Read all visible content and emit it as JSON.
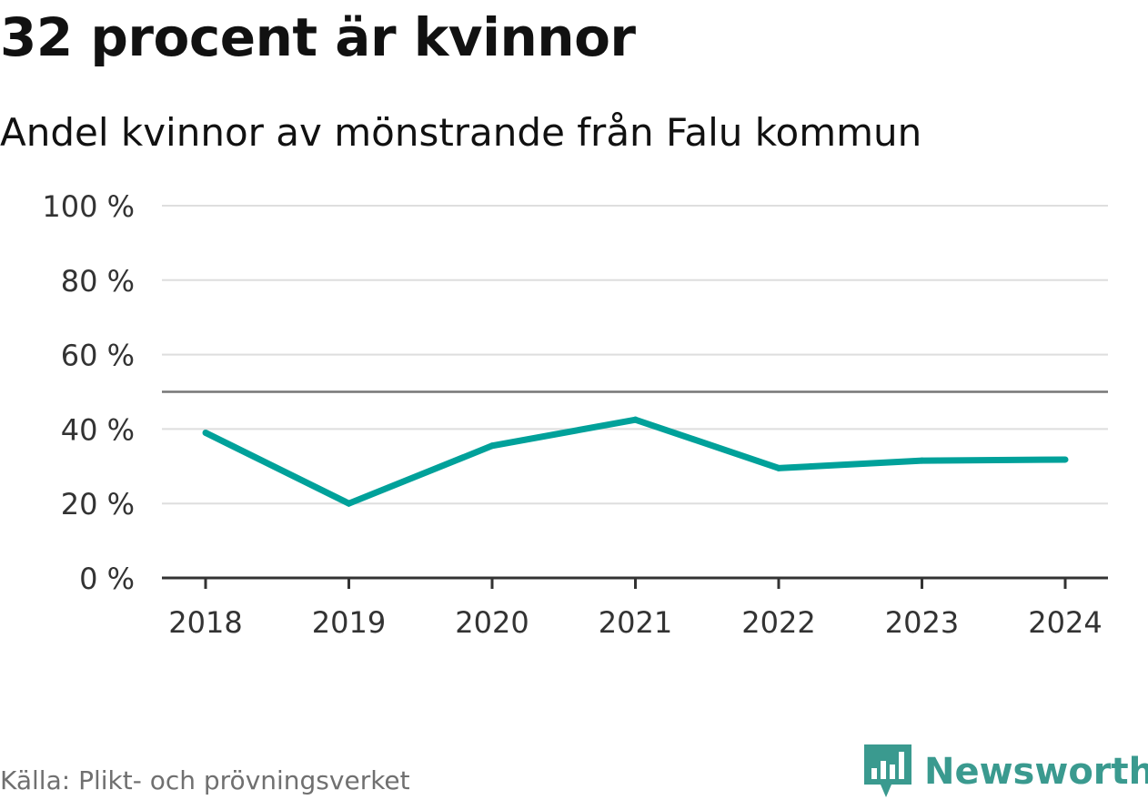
{
  "chart_data": {
    "type": "line",
    "title": "32 procent är kvinnor",
    "subtitle": "Andel kvinnor av mönstrande från Falu kommun",
    "categories": [
      "2018",
      "2019",
      "2020",
      "2021",
      "2022",
      "2023",
      "2024"
    ],
    "series": [
      {
        "name": "Andel kvinnor",
        "values": [
          39,
          20,
          35.5,
          42.5,
          29.5,
          31.5,
          31.8
        ],
        "color": "#00a19a"
      }
    ],
    "ylim": [
      0,
      100
    ],
    "yticks": [
      0,
      20,
      40,
      60,
      80,
      100
    ],
    "ytick_labels": [
      "0 %",
      "20 %",
      "40 %",
      "60 %",
      "80 %",
      "100 %"
    ],
    "reference_line": 50,
    "grid": true,
    "xlabel": "",
    "ylabel": ""
  },
  "footer": {
    "source": "Källa: Plikt- och prövningsverket",
    "brand": "Newsworthy",
    "brand_color": "#3a9a8f"
  }
}
